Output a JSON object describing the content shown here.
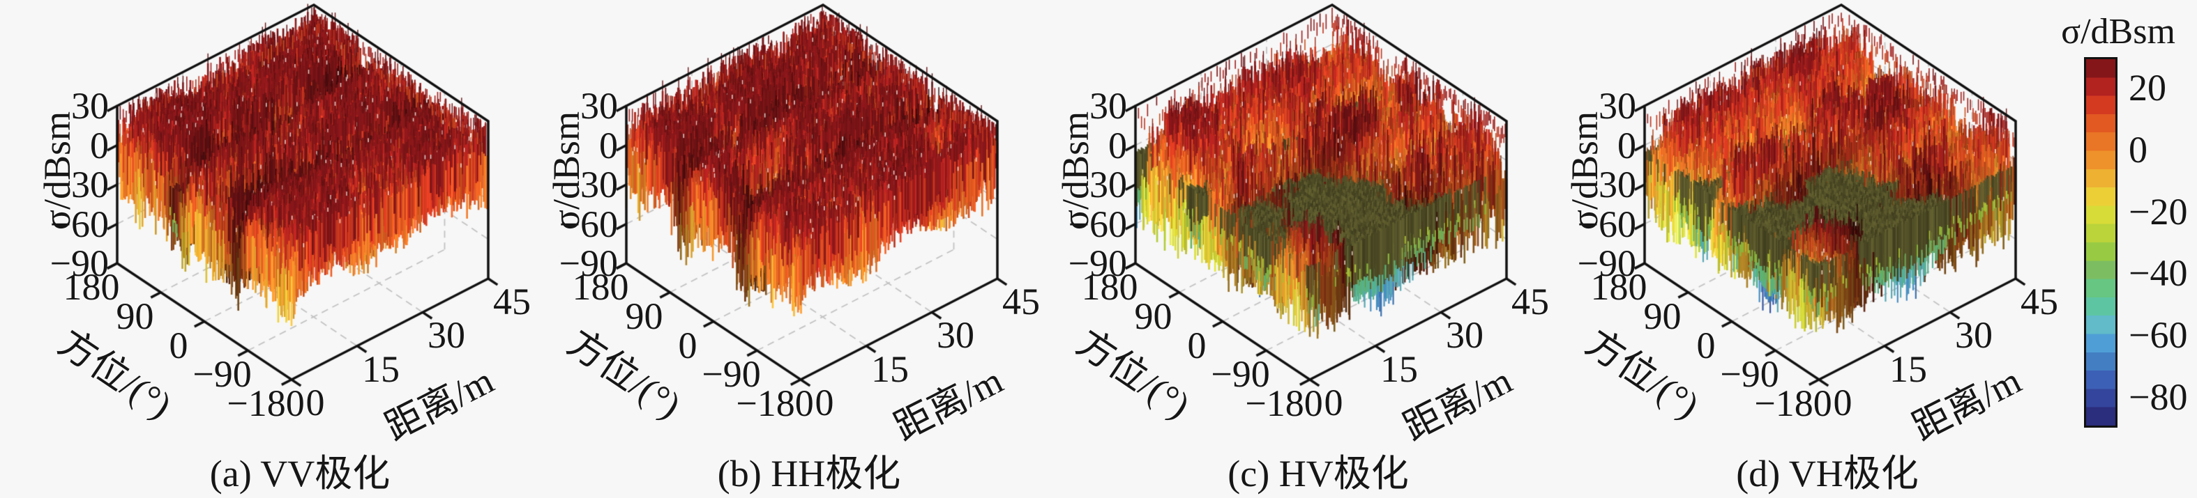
{
  "page": {
    "background": "#f7f7f7",
    "text_color": "#161616"
  },
  "chart_data": [
    {
      "type": "surface3d",
      "caption": "(a) VV极化",
      "polarization": "VV",
      "xlabel": "距离/m",
      "x_ticks": [
        0,
        15,
        30,
        45
      ],
      "x_range": [
        0,
        45
      ],
      "ylabel": "方位/(°)",
      "y_ticks": [
        180,
        90,
        0,
        -90,
        -180
      ],
      "y_range": [
        -180,
        180
      ],
      "zlabel": "σ/dBsm",
      "z_ticks": [
        30,
        0,
        -30,
        -60,
        -90
      ],
      "z_range": [
        -90,
        30
      ],
      "grid": true,
      "surface_model": {
        "seed": 11,
        "style": "co-pol",
        "base_level_db": 15,
        "spike_up_db": 26,
        "spike_down_db": 9,
        "patch_amp_db": 6,
        "ripple_az_db": 5,
        "ripple_az_cycles": 2.2,
        "ripple_r_db": 4,
        "ripple_r_cycles": 1.6,
        "dip_bands": [
          {
            "azimuth_deg": 62,
            "width_deg": 17,
            "depth_db": 30
          },
          {
            "azimuth_deg": -66,
            "width_deg": 15,
            "depth_db": 34
          }
        ],
        "pits": [
          {
            "azimuth_deg": -22,
            "range_m": 7,
            "az_sigma_deg": 20,
            "range_sigma_m": 4.5,
            "depth_db": 76
          }
        ],
        "valleys": [],
        "front_fringe": {
          "range_below_m": 2.5,
          "extra_dip_db": 16
        },
        "shadow_color": "#5c1812"
      }
    },
    {
      "type": "surface3d",
      "caption": "(b) HH极化",
      "polarization": "HH",
      "xlabel": "距离/m",
      "x_ticks": [
        0,
        15,
        30,
        45
      ],
      "x_range": [
        0,
        45
      ],
      "ylabel": "方位/(°)",
      "y_ticks": [
        180,
        90,
        0,
        -90,
        -180
      ],
      "y_range": [
        -180,
        180
      ],
      "zlabel": "σ/dBsm",
      "z_ticks": [
        30,
        0,
        -30,
        -60,
        -90
      ],
      "z_range": [
        -90,
        30
      ],
      "grid": true,
      "surface_model": {
        "seed": 23,
        "style": "co-pol",
        "base_level_db": 15,
        "spike_up_db": 26,
        "spike_down_db": 9,
        "patch_amp_db": 6,
        "ripple_az_db": 5,
        "ripple_az_cycles": 2.4,
        "ripple_r_db": 4,
        "ripple_r_cycles": 1.8,
        "dip_bands": [
          {
            "azimuth_deg": 70,
            "width_deg": 16,
            "depth_db": 26
          },
          {
            "azimuth_deg": -58,
            "width_deg": 16,
            "depth_db": 32
          }
        ],
        "pits": [
          {
            "azimuth_deg": -30,
            "range_m": 8,
            "az_sigma_deg": 18,
            "range_sigma_m": 4,
            "depth_db": 72
          }
        ],
        "valleys": [],
        "front_fringe": {
          "range_below_m": 2.5,
          "extra_dip_db": 16
        },
        "shadow_color": "#5c1812"
      }
    },
    {
      "type": "surface3d",
      "caption": "(c) HV极化",
      "polarization": "HV",
      "xlabel": "距离/m",
      "x_ticks": [
        0,
        15,
        30,
        45
      ],
      "x_range": [
        0,
        45
      ],
      "ylabel": "方位/(°)",
      "y_ticks": [
        180,
        90,
        0,
        -90,
        -180
      ],
      "y_range": [
        -180,
        180
      ],
      "zlabel": "σ/dBsm",
      "z_ticks": [
        30,
        0,
        -30,
        -60,
        -90
      ],
      "z_range": [
        -90,
        30
      ],
      "grid": true,
      "surface_model": {
        "seed": 37,
        "style": "cross-pol",
        "base_level_db": 3,
        "spike_up_db": 24,
        "spike_down_db": 11,
        "patch_amp_db": 9,
        "ripple_az_db": 6,
        "ripple_az_cycles": 2.6,
        "ripple_r_db": 5,
        "ripple_r_cycles": 2.0,
        "dip_bands": [
          {
            "azimuth_deg": 180,
            "width_deg": 9,
            "depth_db": 24
          },
          {
            "azimuth_deg": 58,
            "width_deg": 14,
            "depth_db": 12
          },
          {
            "azimuth_deg": -12,
            "width_deg": 16,
            "depth_db": 14
          },
          {
            "azimuth_deg": -96,
            "width_deg": 14,
            "depth_db": 12
          },
          {
            "azimuth_deg": -180,
            "width_deg": 9,
            "depth_db": 20
          }
        ],
        "pits": [
          {
            "azimuth_deg": -40,
            "range_m": 4,
            "az_sigma_deg": 25,
            "range_sigma_m": 3,
            "depth_db": 55
          }
        ],
        "valleys": [
          {
            "azimuth_deg": -86,
            "range_m": 15,
            "az_sigma_deg": 72,
            "range_sigma_m": 10,
            "depth_db": 48
          },
          {
            "azimuth_deg": -162,
            "range_m": 22,
            "az_sigma_deg": 30,
            "range_sigma_m": 13,
            "depth_db": 40
          }
        ],
        "front_fringe": {
          "range_below_m": 5,
          "extra_dip_db": 30
        },
        "shadow_color": "#4e4c26"
      }
    },
    {
      "type": "surface3d",
      "caption": "(d) VH极化",
      "polarization": "VH",
      "xlabel": "距离/m",
      "x_ticks": [
        0,
        15,
        30,
        45
      ],
      "x_range": [
        0,
        45
      ],
      "ylabel": "方位/(°)",
      "y_ticks": [
        180,
        90,
        0,
        -90,
        -180
      ],
      "y_range": [
        -180,
        180
      ],
      "zlabel": "σ/dBsm",
      "z_ticks": [
        30,
        0,
        -30,
        -60,
        -90
      ],
      "z_range": [
        -90,
        30
      ],
      "grid": true,
      "surface_model": {
        "seed": 51,
        "style": "cross-pol",
        "base_level_db": 3,
        "spike_up_db": 24,
        "spike_down_db": 11,
        "patch_amp_db": 9,
        "ripple_az_db": 6,
        "ripple_az_cycles": 2.4,
        "ripple_r_db": 5,
        "ripple_r_cycles": 2.1,
        "dip_bands": [
          {
            "azimuth_deg": 180,
            "width_deg": 9,
            "depth_db": 22
          },
          {
            "azimuth_deg": 64,
            "width_deg": 14,
            "depth_db": 12
          },
          {
            "azimuth_deg": -8,
            "width_deg": 16,
            "depth_db": 14
          },
          {
            "azimuth_deg": -100,
            "width_deg": 14,
            "depth_db": 12
          },
          {
            "azimuth_deg": -180,
            "width_deg": 9,
            "depth_db": 20
          }
        ],
        "pits": [
          {
            "azimuth_deg": -44,
            "range_m": 4,
            "az_sigma_deg": 25,
            "range_sigma_m": 3,
            "depth_db": 55
          }
        ],
        "valleys": [
          {
            "azimuth_deg": -82,
            "range_m": 15,
            "az_sigma_deg": 70,
            "range_sigma_m": 10,
            "depth_db": 46
          },
          {
            "azimuth_deg": -158,
            "range_m": 22,
            "az_sigma_deg": 30,
            "range_sigma_m": 13,
            "depth_db": 40
          }
        ],
        "front_fringe": {
          "range_below_m": 5,
          "extra_dip_db": 30
        },
        "shadow_color": "#4e4c26"
      }
    },
    {
      "type": "colorbar",
      "title": "σ/dBsm",
      "ticks": [
        20,
        0,
        -20,
        -40,
        -60,
        -80
      ],
      "range": [
        -90,
        30
      ],
      "palette_low_to_high": [
        "#2b2d7d",
        "#33459c",
        "#3c60b5",
        "#437ec2",
        "#4f9fd6",
        "#61bbc9",
        "#5ec5a2",
        "#66c682",
        "#7dbd62",
        "#98cb43",
        "#bad43a",
        "#d8dc38",
        "#eccf37",
        "#eeb132",
        "#ee922b",
        "#e97526",
        "#e25921",
        "#d43a20",
        "#b2221f",
        "#841619"
      ]
    }
  ]
}
